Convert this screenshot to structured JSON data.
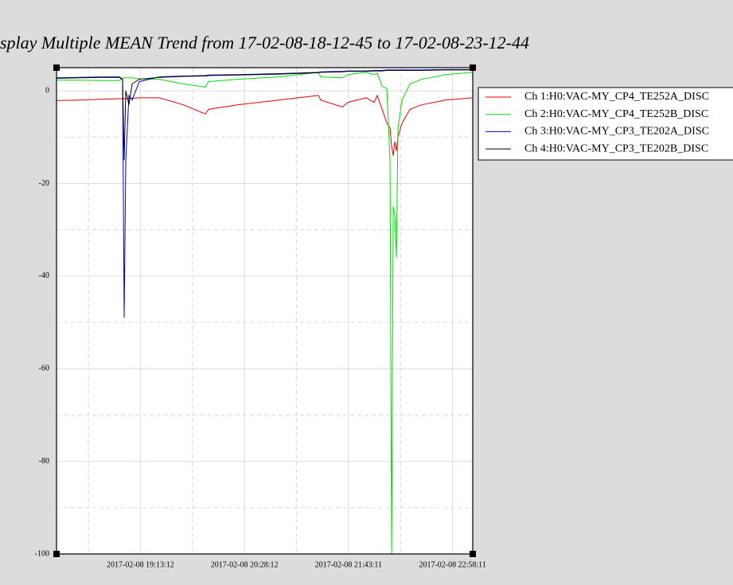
{
  "chart_data": {
    "type": "line",
    "title": "splay Multiple MEAN Trend from 17-02-08-18-12-45 to 17-02-08-23-12-44",
    "x": [
      "2017-02-08 18:12:45",
      "2017-02-08 18:29:23",
      "2017-02-08 18:46:36",
      "2017-02-08 18:58:04",
      "2017-02-08 19:00:22",
      "2017-02-08 19:01:31",
      "2017-02-08 19:02:40",
      "2017-02-08 19:04:57",
      "2017-02-08 19:07:15",
      "2017-02-08 19:12:25",
      "2017-02-08 19:26:45",
      "2017-02-08 19:43:58",
      "2017-02-08 20:00:02",
      "2017-02-08 20:02:19",
      "2017-02-08 20:24:07",
      "2017-02-08 20:52:48",
      "2017-02-08 21:21:29",
      "2017-02-08 21:23:12",
      "2017-02-08 21:38:42",
      "2017-02-08 21:42:43",
      "2017-02-08 21:55:54",
      "2017-02-08 22:01:39",
      "2017-02-08 22:03:56",
      "2017-02-08 22:07:23",
      "2017-02-08 22:10:49",
      "2017-02-08 22:13:07",
      "2017-02-08 22:14:16",
      "2017-02-08 22:15:25",
      "2017-02-08 22:16:33",
      "2017-02-08 22:17:42",
      "2017-02-08 22:18:51",
      "2017-02-08 22:21:43",
      "2017-02-08 22:27:27",
      "2017-02-08 22:36:04",
      "2017-02-08 22:53:16",
      "2017-02-08 23:12:44"
    ],
    "series": [
      {
        "name": "Ch 1:H0:VAC-MY_CP4_TE252A_DISC",
        "color": "#e00000",
        "values": [
          -2.1,
          -2,
          -1.8,
          -1.7,
          -1.7,
          -1.7,
          -1.7,
          -1.6,
          -1.6,
          -1.5,
          -1.5,
          -3,
          -5,
          -4,
          -3,
          -2,
          -1,
          -2,
          -3.5,
          -2.5,
          -1.5,
          -2.5,
          -1,
          -4,
          -7,
          -8,
          -12,
          -14,
          -11,
          -13,
          -10,
          -7,
          -4,
          -3,
          -2,
          -1.5
        ]
      },
      {
        "name": "Ch 2:H0:VAC-MY_CP4_TE252B_DISC",
        "color": "#00dd00",
        "values": [
          2.3,
          2.3,
          2.2,
          2.2,
          2.8,
          2.8,
          2.8,
          2.8,
          2.8,
          2.6,
          2.5,
          1.5,
          0.8,
          2,
          2.5,
          3,
          4,
          3,
          2.8,
          3.5,
          4,
          3.5,
          3.8,
          1,
          0.5,
          -15,
          -100,
          -25,
          -27,
          -36,
          -8,
          -2,
          1.5,
          2.5,
          3.5,
          4
        ]
      },
      {
        "name": "Ch 3:H0:VAC-MY_CP3_TE202A_DISC",
        "color": "#0000cc",
        "values": [
          2.8,
          2.9,
          3,
          3,
          2.5,
          -49,
          -15,
          -1,
          -2,
          2,
          3,
          3.2,
          3.3,
          3.4,
          3.5,
          3.7,
          4,
          4.1,
          4.2,
          4.3,
          4.3,
          4.4,
          4.4,
          4.4,
          4.5,
          4.5,
          4.5,
          4.5,
          4.5,
          4.5,
          4.5,
          4.5,
          4.5,
          4.5,
          4.6,
          4.6
        ]
      },
      {
        "name": "Ch 4:H0:VAC-MY_CP3_TE202B_DISC",
        "color": "#000000",
        "values": [
          2.7,
          2.8,
          2.9,
          2.9,
          2.4,
          -15,
          0,
          -3,
          1.5,
          2.5,
          2.9,
          3.1,
          3.2,
          3.3,
          3.4,
          3.6,
          3.9,
          4,
          4.1,
          4.2,
          4.2,
          4.3,
          4.3,
          4.3,
          4.4,
          4.4,
          4.4,
          4.4,
          4.4,
          4.4,
          4.4,
          4.4,
          4.4,
          4.4,
          4.5,
          4.5
        ]
      }
    ],
    "xlim": [
      "2017-02-08 18:12:45",
      "2017-02-08 23:12:44"
    ],
    "xticks": [
      "2017-02-08 19:13:12",
      "2017-02-08 20:28:12",
      "2017-02-08 21:43:11",
      "2017-02-08 22:58:11"
    ],
    "xminorticks": [
      "2017-02-08 18:35:42",
      "2017-02-08 19:50:42",
      "2017-02-08 21:05:42",
      "2017-02-08 22:20:41"
    ],
    "ylim": [
      -100,
      5
    ],
    "yticks": [
      0,
      -20,
      -40,
      -60,
      -80,
      -100
    ],
    "yminorticks": [
      -10,
      -30,
      -50,
      -70,
      -90
    ],
    "grid": true
  }
}
